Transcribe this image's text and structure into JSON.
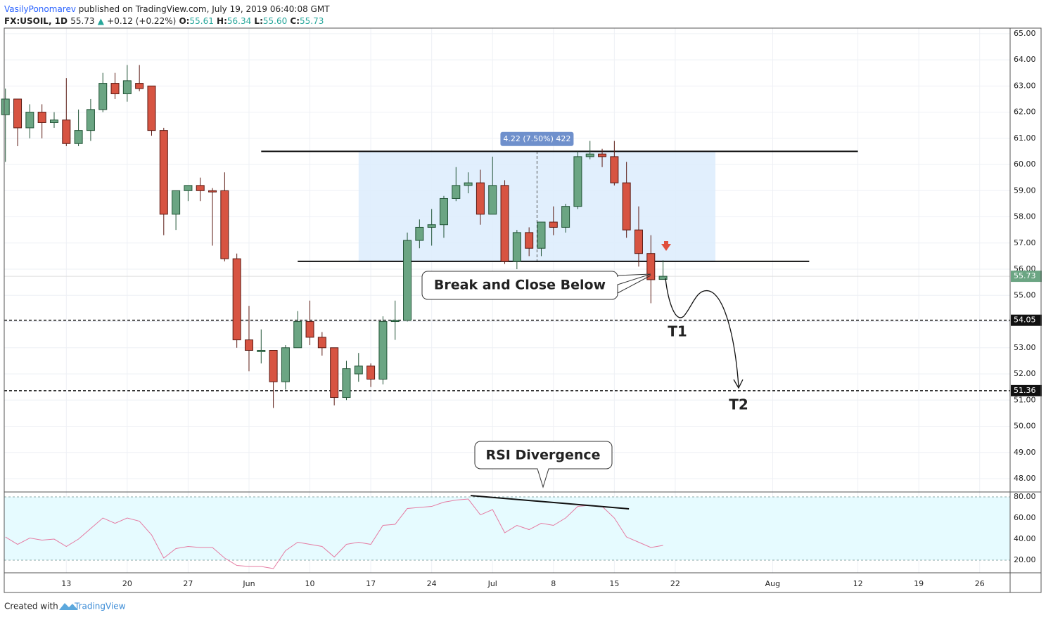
{
  "header": {
    "author": "VasilyPonomarev",
    "published": "published on TradingView.com, July 19, 2019 06:40:08 GMT",
    "symbol": "FX:USOIL, 1D",
    "last": "55.73",
    "change": "+0.12 (+0.22%)",
    "o_label": "O:",
    "o": "55.61",
    "h_label": "H:",
    "h": "56.34",
    "l_label": "L:",
    "l": "55.60",
    "c_label": "C:",
    "c": "55.73"
  },
  "footer": {
    "created": "Created with",
    "brand": "TradingView"
  },
  "chart_data": [
    {
      "type": "candlestick",
      "colors": {
        "up": "#6ba583",
        "down": "#d75442",
        "up_border": "#225437",
        "down_border": "#5b1a13"
      },
      "x": [
        0,
        1,
        2,
        3,
        4,
        5,
        6,
        7,
        8,
        9,
        10,
        11,
        12,
        13,
        14,
        15,
        16,
        17,
        18,
        19,
        20,
        21,
        22,
        23,
        24,
        25,
        26,
        27,
        28,
        29,
        30,
        31,
        32,
        33,
        34,
        35,
        36,
        37,
        38,
        39,
        40,
        41,
        42,
        43,
        44,
        45,
        46,
        47,
        48,
        49,
        50,
        51,
        52,
        53,
        54
      ],
      "open": [
        61.9,
        62.5,
        61.4,
        62.0,
        61.6,
        61.7,
        60.8,
        61.3,
        62.1,
        63.1,
        62.7,
        63.1,
        63.0,
        61.3,
        58.1,
        59.0,
        59.2,
        59.0,
        59.0,
        56.4,
        53.3,
        52.85,
        52.9,
        51.7,
        53.0,
        54.0,
        53.4,
        53.0,
        51.1,
        52.0,
        52.3,
        51.8,
        54.0,
        54.05,
        57.1,
        57.6,
        57.7,
        58.7,
        59.2,
        59.3,
        58.1,
        59.2,
        56.3,
        57.4,
        56.8,
        57.8,
        57.6,
        58.4,
        60.3,
        60.4,
        60.3,
        59.3,
        57.5,
        56.6,
        55.61
      ],
      "high": [
        62.9,
        62.5,
        62.3,
        62.3,
        62.0,
        63.3,
        62.1,
        62.5,
        63.5,
        63.5,
        63.8,
        63.8,
        63.0,
        61.4,
        59.0,
        59.2,
        59.5,
        59.1,
        59.7,
        56.6,
        54.6,
        53.7,
        52.9,
        53.1,
        54.4,
        54.8,
        53.6,
        53.0,
        52.5,
        52.8,
        52.4,
        54.2,
        54.8,
        57.4,
        57.9,
        58.3,
        58.8,
        59.9,
        59.7,
        59.8,
        60.3,
        59.4,
        57.5,
        57.6,
        57.8,
        58.4,
        58.5,
        60.5,
        60.9,
        60.6,
        60.9,
        60.1,
        58.4,
        57.3,
        56.34
      ],
      "low": [
        60.1,
        60.7,
        61.0,
        61.0,
        61.4,
        60.7,
        60.7,
        60.9,
        62.0,
        62.5,
        62.4,
        62.8,
        61.1,
        57.3,
        57.5,
        58.6,
        58.6,
        56.9,
        56.3,
        53.0,
        52.1,
        52.4,
        50.7,
        51.4,
        53.0,
        53.1,
        52.7,
        50.8,
        51.0,
        51.7,
        51.5,
        51.6,
        53.3,
        54.0,
        56.8,
        56.9,
        57.2,
        58.6,
        58.9,
        57.7,
        58.1,
        56.2,
        56.0,
        56.5,
        56.5,
        57.3,
        57.4,
        58.3,
        60.2,
        59.9,
        59.2,
        57.2,
        56.1,
        54.7,
        55.6
      ],
      "close": [
        62.5,
        61.4,
        62.0,
        61.6,
        61.7,
        60.8,
        61.3,
        62.1,
        63.1,
        62.7,
        63.2,
        62.9,
        61.3,
        58.1,
        59.0,
        59.2,
        59.0,
        58.95,
        56.4,
        53.3,
        52.9,
        52.9,
        51.7,
        53.0,
        54.0,
        53.4,
        53.0,
        51.1,
        52.2,
        52.3,
        51.8,
        54.0,
        54.05,
        57.1,
        57.6,
        57.7,
        58.7,
        59.2,
        59.3,
        58.1,
        59.2,
        56.3,
        57.4,
        56.8,
        57.8,
        57.6,
        58.4,
        60.3,
        60.4,
        60.3,
        59.3,
        57.5,
        56.6,
        55.6,
        55.73
      ],
      "xlim": [
        -0.1,
        82.5
      ],
      "xticks": [
        {
          "value": 5,
          "label": "13"
        },
        {
          "value": 10,
          "label": "20"
        },
        {
          "value": 15,
          "label": "27"
        },
        {
          "value": 20,
          "label": "Jun"
        },
        {
          "value": 25,
          "label": "10"
        },
        {
          "value": 30,
          "label": "17"
        },
        {
          "value": 35,
          "label": "24"
        },
        {
          "value": 40,
          "label": "Jul"
        },
        {
          "value": 45,
          "label": "8"
        },
        {
          "value": 50,
          "label": "15"
        },
        {
          "value": 55,
          "label": "22"
        },
        {
          "value": 63,
          "label": "Aug"
        },
        {
          "value": 70,
          "label": "12"
        },
        {
          "value": 75,
          "label": "19"
        },
        {
          "value": 80,
          "label": "26"
        }
      ],
      "ylim": [
        47.49,
        65.21
      ],
      "yticks": [
        {
          "value": 48,
          "label": "48.00"
        },
        {
          "value": 49,
          "label": "49.00"
        },
        {
          "value": 50,
          "label": "50.00"
        },
        {
          "value": 51,
          "label": "51.00"
        },
        {
          "value": 52,
          "label": "52.00"
        },
        {
          "value": 53,
          "label": "53.00"
        },
        {
          "value": 54,
          "label": "54.00"
        },
        {
          "value": 55,
          "label": "55.00"
        },
        {
          "value": 56,
          "label": "56.00"
        },
        {
          "value": 57,
          "label": "57.00"
        },
        {
          "value": 58,
          "label": "58.00"
        },
        {
          "value": 59,
          "label": "59.00"
        },
        {
          "value": 60,
          "label": "60.00"
        },
        {
          "value": 61,
          "label": "61.00"
        },
        {
          "value": 62,
          "label": "62.00"
        },
        {
          "value": 63,
          "label": "63.00"
        },
        {
          "value": 64,
          "label": "64.00"
        },
        {
          "value": 65,
          "label": "65.00"
        }
      ],
      "grid": true,
      "levels": [
        54.05,
        51.36
      ],
      "last_price": 55.73,
      "trend_lines": [
        {
          "x": [
            21,
            70
          ],
          "y": [
            60.5,
            60.5
          ]
        },
        {
          "x": [
            24,
            66
          ],
          "y": [
            56.3,
            56.3
          ]
        }
      ],
      "range_box": {
        "x": [
          29,
          58.3
        ],
        "y": [
          56.27,
          60.49
        ],
        "label": "4.22 (7.50%) 422"
      },
      "annotations": {
        "break": "Break and Close Below",
        "t1": "T1",
        "t2": "T2"
      }
    },
    {
      "type": "line",
      "color": "#e57ba2",
      "x": [
        0,
        1,
        2,
        3,
        4,
        5,
        6,
        7,
        8,
        9,
        10,
        11,
        12,
        13,
        14,
        15,
        16,
        17,
        18,
        19,
        20,
        21,
        22,
        23,
        24,
        25,
        26,
        27,
        28,
        29,
        30,
        31,
        32,
        33,
        34,
        35,
        36,
        37,
        38,
        39,
        40,
        41,
        42,
        43,
        44,
        45,
        46,
        47,
        48,
        49,
        50,
        51,
        52,
        53,
        54
      ],
      "values": [
        42,
        35,
        41,
        39,
        40,
        33,
        40,
        50,
        60,
        55,
        60,
        57,
        44,
        22,
        31,
        33,
        32,
        32,
        22,
        15,
        14,
        14,
        12,
        29,
        37,
        35,
        33,
        23,
        35,
        37,
        35,
        53,
        54,
        69,
        70,
        71,
        75,
        77,
        78,
        63,
        68,
        46,
        53,
        49,
        55,
        53,
        60,
        71,
        72,
        71,
        60,
        42,
        37,
        32,
        34
      ],
      "ylim": [
        8,
        84.7
      ],
      "yticks": [
        {
          "value": 20,
          "label": "20.00"
        },
        {
          "value": 40,
          "label": "40.00"
        },
        {
          "value": 60,
          "label": "60.00"
        },
        {
          "value": 80,
          "label": "80.00"
        }
      ],
      "band": [
        20,
        80
      ],
      "divergence": {
        "x": [
          38.2,
          51.2
        ],
        "y": [
          81.3,
          68.7
        ]
      },
      "annotations": {
        "rsi": "RSI Divergence"
      }
    }
  ]
}
